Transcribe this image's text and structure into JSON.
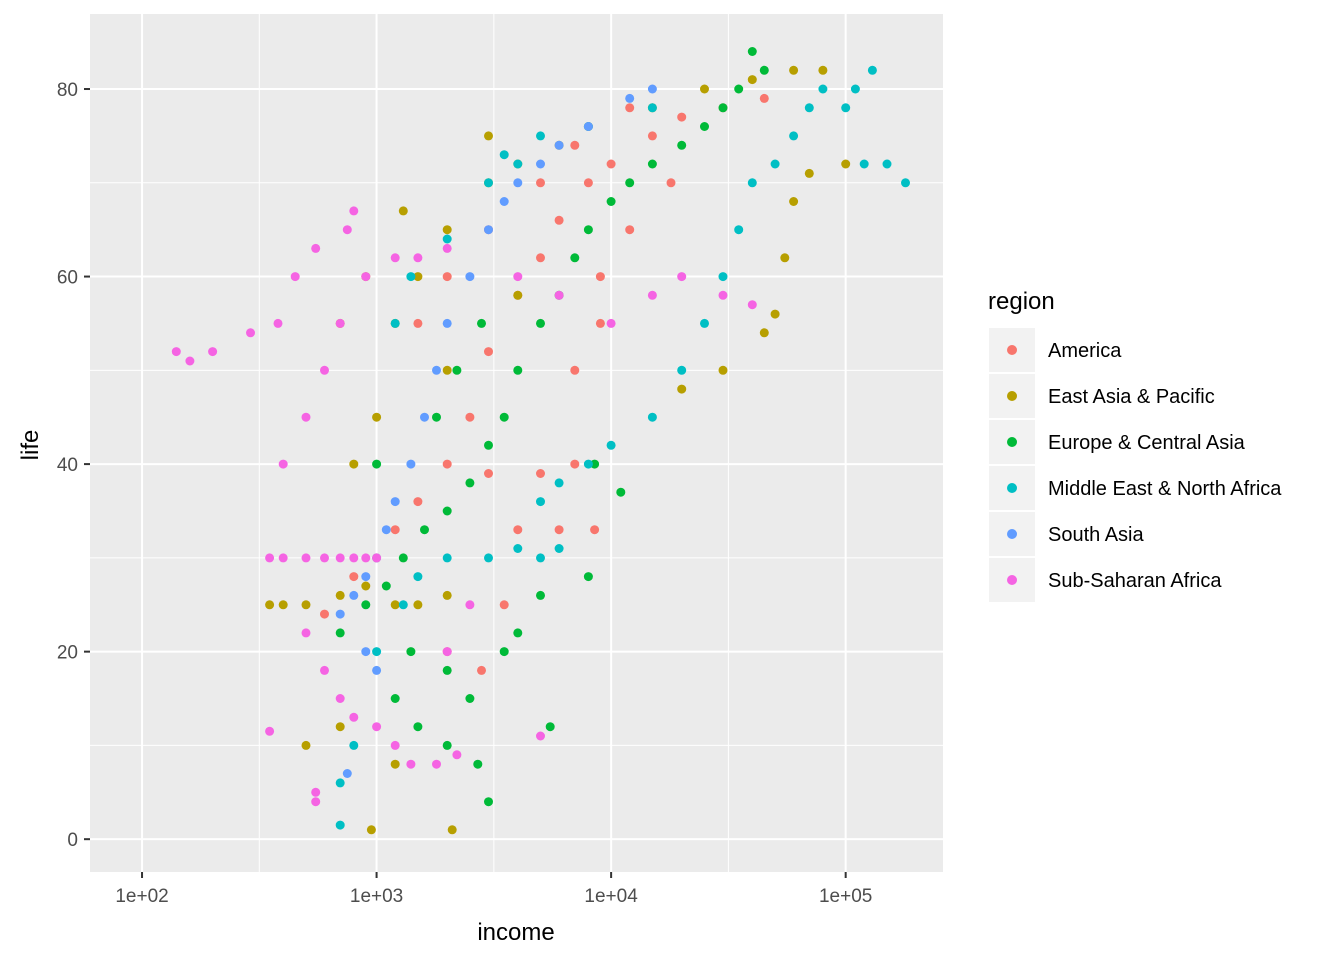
{
  "chart_data": {
    "type": "scatter",
    "title": "",
    "xlabel": "income",
    "ylabel": "life",
    "x_scale": "log10",
    "xlim": [
      60,
      260000
    ],
    "ylim": [
      -3.5,
      88
    ],
    "x_ticks": [
      {
        "value": 100,
        "label": "1e+02"
      },
      {
        "value": 1000,
        "label": "1e+03"
      },
      {
        "value": 10000,
        "label": "1e+04"
      },
      {
        "value": 100000,
        "label": "1e+05"
      }
    ],
    "y_ticks": [
      {
        "value": 0,
        "label": "0"
      },
      {
        "value": 20,
        "label": "20"
      },
      {
        "value": 40,
        "label": "40"
      },
      {
        "value": 60,
        "label": "60"
      },
      {
        "value": 80,
        "label": "80"
      }
    ],
    "grid": true,
    "panel_background": "#ebebeb",
    "legend": {
      "title": "region",
      "position": "right"
    },
    "series": [
      {
        "name": "America",
        "color": "#F8766D",
        "points": [
          [
            600,
            24
          ],
          [
            800,
            28
          ],
          [
            1000,
            30
          ],
          [
            1200,
            33
          ],
          [
            1500,
            36
          ],
          [
            2000,
            40
          ],
          [
            2500,
            45
          ],
          [
            3000,
            52
          ],
          [
            4000,
            58
          ],
          [
            5000,
            62
          ],
          [
            6000,
            66
          ],
          [
            8000,
            70
          ],
          [
            10000,
            72
          ],
          [
            15000,
            75
          ],
          [
            20000,
            77
          ],
          [
            30000,
            78
          ],
          [
            45000,
            79
          ],
          [
            4000,
            33
          ],
          [
            6000,
            33
          ],
          [
            8500,
            33
          ],
          [
            3000,
            39
          ],
          [
            5000,
            39
          ],
          [
            7000,
            40
          ],
          [
            2000,
            20
          ],
          [
            2800,
            18
          ],
          [
            3500,
            25
          ],
          [
            1500,
            55
          ],
          [
            2000,
            60
          ],
          [
            3000,
            65
          ],
          [
            5000,
            70
          ],
          [
            7000,
            74
          ],
          [
            12000,
            78
          ],
          [
            9000,
            60
          ],
          [
            12000,
            65
          ],
          [
            18000,
            70
          ],
          [
            7000,
            50
          ],
          [
            9000,
            55
          ]
        ]
      },
      {
        "name": "East Asia & Pacific",
        "color": "#B79F00",
        "points": [
          [
            350,
            25
          ],
          [
            400,
            25
          ],
          [
            500,
            25
          ],
          [
            700,
            26
          ],
          [
            900,
            27
          ],
          [
            1200,
            25
          ],
          [
            1500,
            25
          ],
          [
            2000,
            26
          ],
          [
            800,
            40
          ],
          [
            1000,
            45
          ],
          [
            1200,
            55
          ],
          [
            1500,
            60
          ],
          [
            2000,
            65
          ],
          [
            3000,
            70
          ],
          [
            4000,
            72
          ],
          [
            6000,
            74
          ],
          [
            8000,
            76
          ],
          [
            15000,
            78
          ],
          [
            25000,
            80
          ],
          [
            40000,
            81
          ],
          [
            60000,
            82
          ],
          [
            80000,
            82
          ],
          [
            500,
            10
          ],
          [
            700,
            12
          ],
          [
            950,
            1
          ],
          [
            2100,
            1
          ],
          [
            1200,
            8
          ],
          [
            60000,
            68
          ],
          [
            70000,
            71
          ],
          [
            55000,
            62
          ],
          [
            50000,
            56
          ],
          [
            45000,
            54
          ],
          [
            30000,
            50
          ],
          [
            20000,
            48
          ],
          [
            700,
            55
          ],
          [
            900,
            60
          ],
          [
            1300,
            67
          ],
          [
            3000,
            75
          ],
          [
            100000,
            72
          ],
          [
            4000,
            58
          ],
          [
            2000,
            50
          ]
        ]
      },
      {
        "name": "Europe & Central Asia",
        "color": "#00BA38",
        "points": [
          [
            700,
            22
          ],
          [
            900,
            25
          ],
          [
            1100,
            27
          ],
          [
            1300,
            30
          ],
          [
            1600,
            33
          ],
          [
            2000,
            35
          ],
          [
            2500,
            38
          ],
          [
            3000,
            42
          ],
          [
            3500,
            45
          ],
          [
            4000,
            50
          ],
          [
            5000,
            55
          ],
          [
            6000,
            58
          ],
          [
            7000,
            62
          ],
          [
            8000,
            65
          ],
          [
            10000,
            68
          ],
          [
            12000,
            70
          ],
          [
            15000,
            72
          ],
          [
            20000,
            74
          ],
          [
            25000,
            76
          ],
          [
            30000,
            78
          ],
          [
            35000,
            80
          ],
          [
            45000,
            82
          ],
          [
            40000,
            84
          ],
          [
            1200,
            15
          ],
          [
            1500,
            12
          ],
          [
            2000,
            10
          ],
          [
            2500,
            15
          ],
          [
            3000,
            4
          ],
          [
            2700,
            8
          ],
          [
            5500,
            12
          ],
          [
            4000,
            22
          ],
          [
            5000,
            26
          ],
          [
            8000,
            28
          ],
          [
            11000,
            37
          ],
          [
            8500,
            40
          ],
          [
            1800,
            45
          ],
          [
            2200,
            50
          ],
          [
            2800,
            55
          ],
          [
            1000,
            40
          ],
          [
            1400,
            20
          ],
          [
            2000,
            18
          ],
          [
            3500,
            20
          ]
        ]
      },
      {
        "name": "Middle East & North Africa",
        "color": "#00BFC4",
        "points": [
          [
            700,
            1.5
          ],
          [
            700,
            6
          ],
          [
            800,
            10
          ],
          [
            1000,
            20
          ],
          [
            1300,
            25
          ],
          [
            1500,
            28
          ],
          [
            2000,
            30
          ],
          [
            3000,
            30
          ],
          [
            4000,
            31
          ],
          [
            5000,
            30
          ],
          [
            6000,
            31
          ],
          [
            5000,
            36
          ],
          [
            6000,
            38
          ],
          [
            8000,
            40
          ],
          [
            10000,
            42
          ],
          [
            15000,
            45
          ],
          [
            20000,
            50
          ],
          [
            25000,
            55
          ],
          [
            30000,
            60
          ],
          [
            35000,
            65
          ],
          [
            40000,
            70
          ],
          [
            50000,
            72
          ],
          [
            60000,
            75
          ],
          [
            70000,
            78
          ],
          [
            80000,
            80
          ],
          [
            100000,
            78
          ],
          [
            120000,
            72
          ],
          [
            150000,
            72
          ],
          [
            180000,
            70
          ],
          [
            130000,
            82
          ],
          [
            110000,
            80
          ],
          [
            1200,
            55
          ],
          [
            1400,
            60
          ],
          [
            2000,
            64
          ],
          [
            3000,
            70
          ],
          [
            5000,
            75
          ],
          [
            8000,
            76
          ],
          [
            15000,
            78
          ],
          [
            3500,
            73
          ],
          [
            4000,
            72
          ]
        ]
      },
      {
        "name": "South Asia",
        "color": "#619CFF",
        "points": [
          [
            700,
            24
          ],
          [
            800,
            26
          ],
          [
            900,
            28
          ],
          [
            1000,
            30
          ],
          [
            1100,
            33
          ],
          [
            1200,
            36
          ],
          [
            1400,
            40
          ],
          [
            1600,
            45
          ],
          [
            1800,
            50
          ],
          [
            2000,
            55
          ],
          [
            2500,
            60
          ],
          [
            3000,
            65
          ],
          [
            3500,
            68
          ],
          [
            4000,
            70
          ],
          [
            5000,
            72
          ],
          [
            6000,
            74
          ],
          [
            8000,
            76
          ],
          [
            12000,
            79
          ],
          [
            15000,
            80
          ],
          [
            900,
            20
          ],
          [
            1000,
            18
          ],
          [
            750,
            7
          ]
        ]
      },
      {
        "name": "Sub-Saharan Africa",
        "color": "#F564E3",
        "points": [
          [
            140,
            52
          ],
          [
            160,
            51
          ],
          [
            200,
            52
          ],
          [
            290,
            54
          ],
          [
            380,
            55
          ],
          [
            450,
            60
          ],
          [
            550,
            63
          ],
          [
            750,
            65
          ],
          [
            800,
            67
          ],
          [
            350,
            30
          ],
          [
            400,
            30
          ],
          [
            500,
            30
          ],
          [
            600,
            30
          ],
          [
            700,
            30
          ],
          [
            800,
            30
          ],
          [
            900,
            30
          ],
          [
            1000,
            30
          ],
          [
            400,
            40
          ],
          [
            500,
            45
          ],
          [
            600,
            50
          ],
          [
            700,
            55
          ],
          [
            900,
            60
          ],
          [
            1200,
            62
          ],
          [
            1500,
            62
          ],
          [
            2000,
            63
          ],
          [
            4000,
            60
          ],
          [
            6000,
            58
          ],
          [
            10000,
            55
          ],
          [
            15000,
            58
          ],
          [
            20000,
            60
          ],
          [
            30000,
            58
          ],
          [
            40000,
            57
          ],
          [
            500,
            22
          ],
          [
            600,
            18
          ],
          [
            700,
            15
          ],
          [
            800,
            13
          ],
          [
            1000,
            12
          ],
          [
            1200,
            10
          ],
          [
            1400,
            8
          ],
          [
            1800,
            8
          ],
          [
            2200,
            9
          ],
          [
            550,
            4
          ],
          [
            550,
            5
          ],
          [
            350,
            11.5
          ],
          [
            5000,
            11
          ],
          [
            2000,
            20
          ],
          [
            2500,
            25
          ]
        ]
      }
    ]
  }
}
